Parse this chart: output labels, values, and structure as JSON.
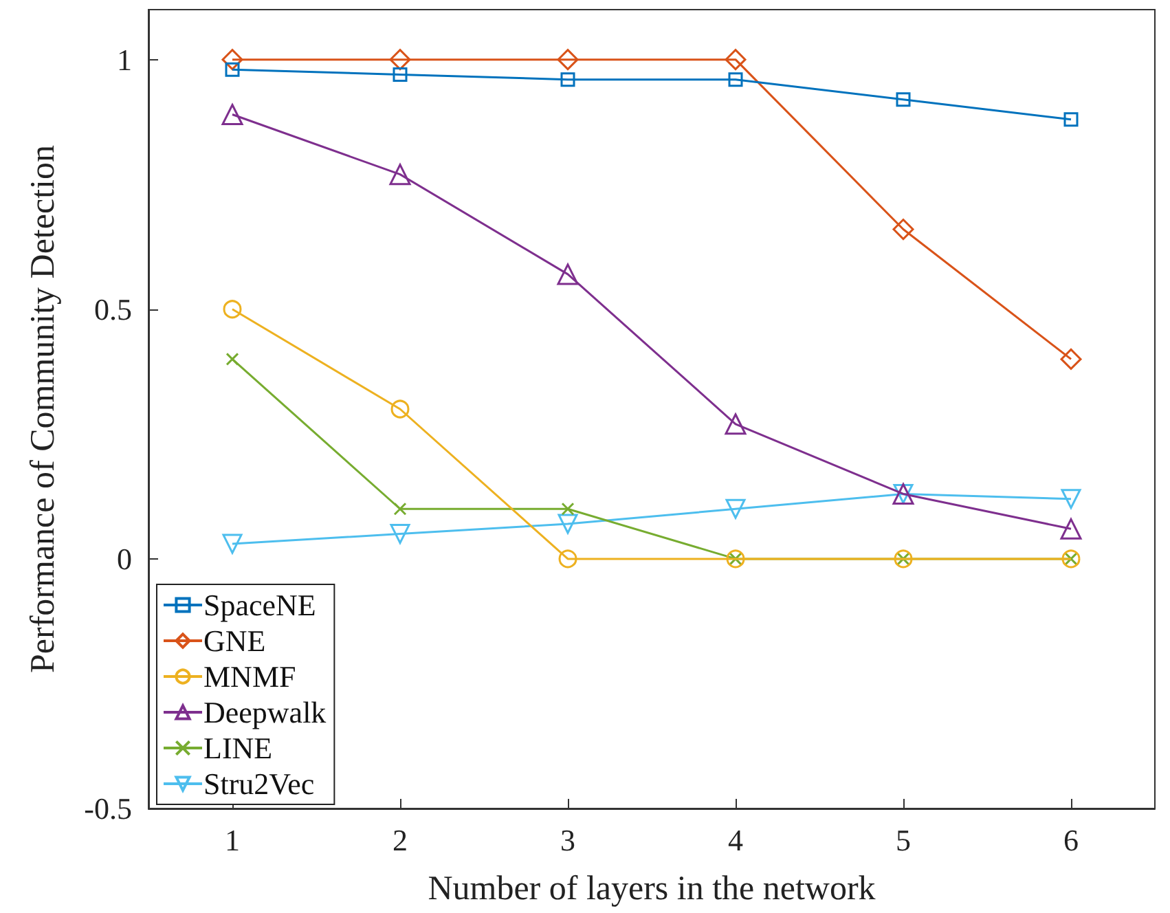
{
  "chart_data": {
    "type": "line",
    "xlabel": "Number of layers in the network",
    "ylabel": "Performance of Community Detection",
    "x": [
      1,
      2,
      3,
      4,
      5,
      6
    ],
    "series": [
      {
        "name": "SpaceNE",
        "color": "#0072bd",
        "marker": "square",
        "values": [
          0.98,
          0.97,
          0.96,
          0.96,
          0.92,
          0.88
        ]
      },
      {
        "name": "GNE",
        "color": "#d95319",
        "marker": "diamond",
        "values": [
          1,
          1,
          1,
          1,
          0.66,
          0.4
        ]
      },
      {
        "name": "MNMF",
        "color": "#edb120",
        "marker": "circle",
        "values": [
          0.5,
          0.3,
          0,
          0,
          0,
          0
        ]
      },
      {
        "name": "Deepwalk",
        "color": "#7e2f8e",
        "marker": "triangle",
        "values": [
          0.89,
          0.77,
          0.57,
          0.27,
          0.13,
          0.06
        ]
      },
      {
        "name": "LINE",
        "color": "#77ac30",
        "marker": "cross",
        "values": [
          0.4,
          0.1,
          0.1,
          0,
          0,
          0
        ]
      },
      {
        "name": "Stru2Vec",
        "color": "#4dbeee",
        "marker": "triangle_down",
        "values": [
          0.03,
          0.05,
          0.07,
          0.1,
          0.13,
          0.12
        ]
      }
    ],
    "xlim": [
      0.5,
      6.5
    ],
    "xticks": [
      1,
      2,
      3,
      4,
      5,
      6
    ],
    "ylim": [
      -0.5,
      1.1
    ],
    "yticks": [
      -0.5,
      0,
      0.5,
      1
    ],
    "grid": false,
    "legend": "bottom left",
    "line_style": "solid"
  }
}
